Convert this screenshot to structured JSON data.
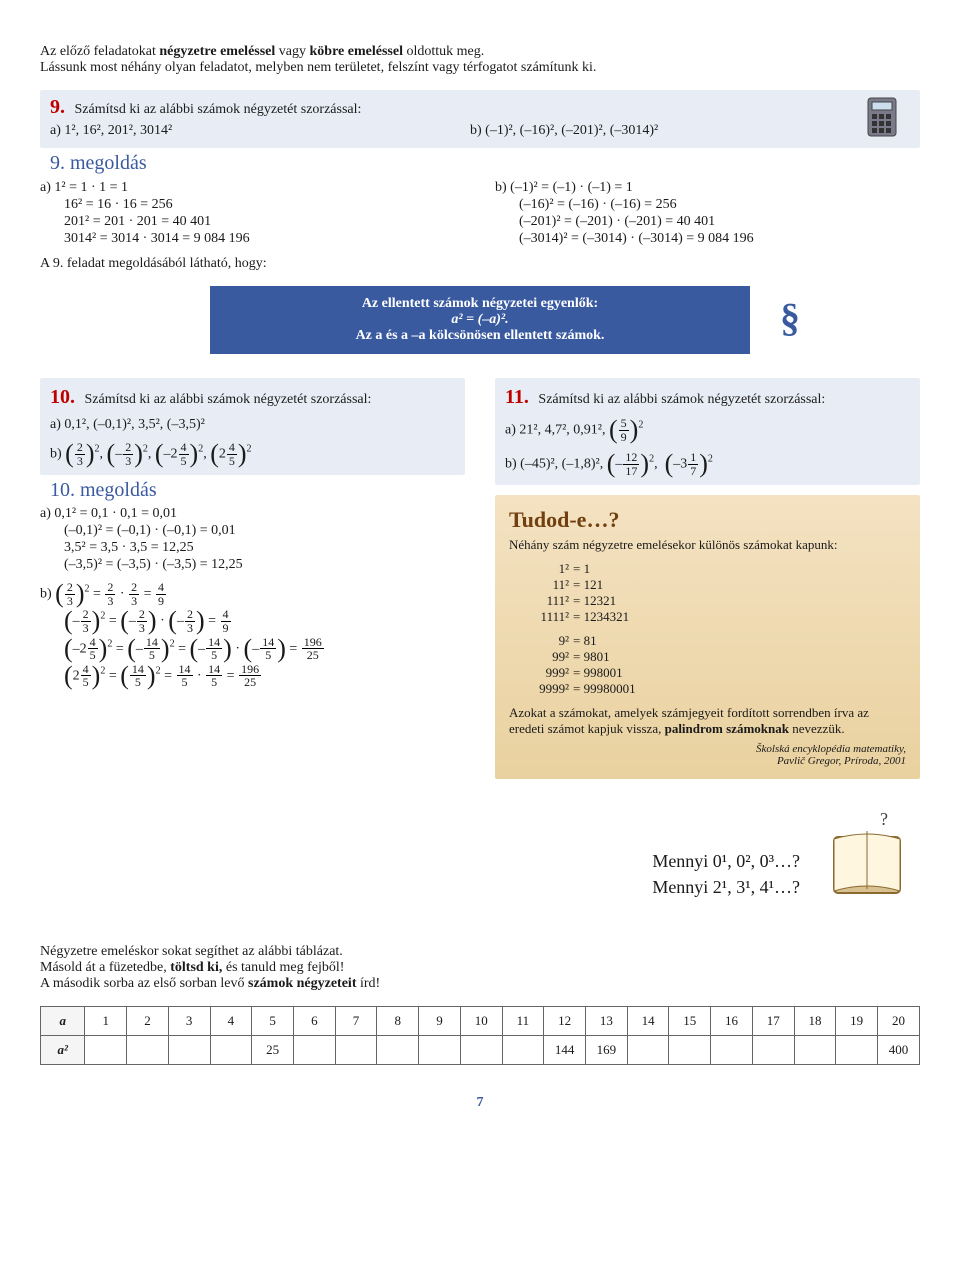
{
  "intro": {
    "line1_a": "Az előző feladatokat ",
    "line1_b": "négyzetre emeléssel",
    "line1_c": " vagy ",
    "line1_d": "köbre emeléssel",
    "line1_e": " oldottuk meg.",
    "line2": "Lássunk most néhány olyan feladatot, melyben nem területet, felszínt vagy térfogatot számítunk ki."
  },
  "ex9": {
    "num": "9.",
    "text": "Számítsd ki az alábbi számok négyzetét szorzással:",
    "a": "a) 1², 16², 201², 3014²",
    "b": "b) (–1)², (–16)², (–201)², (–3014)²"
  },
  "sol9": {
    "label": "9. megoldás",
    "a1": "a) 1² = 1 · 1 = 1",
    "a2": "16² = 16 · 16 = 256",
    "a3": "201² = 201 · 201 = 40 401",
    "a4": "3014² = 3014 · 3014 = 9 084 196",
    "b1": "b) (–1)² = (–1) · (–1) = 1",
    "b2": "(–16)² = (–16) · (–16) = 256",
    "b3": "(–201)² = (–201) · (–201) = 40 401",
    "b4": "(–3014)² = (–3014) · (–3014) = 9 084 196",
    "note": "A 9. feladat megoldásából látható, hogy:"
  },
  "rule": {
    "line1": "Az ellentett számok négyzetei egyenlők:",
    "line2": "a² = (–a)².",
    "line3": "Az a és a –a kölcsönösen ellentett számok."
  },
  "ex10": {
    "num": "10.",
    "text": "Számítsd ki az alábbi számok négyzetét szorzással:",
    "a": "a) 0,1², (–0,1)², 3,5², (–3,5)²",
    "b_pre": "b) "
  },
  "sol10": {
    "label": "10. megoldás",
    "a1": "a) 0,1² = 0,1 · 0,1 = 0,01",
    "a2": "(–0,1)² = (–0,1) · (–0,1) = 0,01",
    "a3": "3,5² = 3,5 · 3,5 = 12,25",
    "a4": "(–3,5)² = (–3,5) · (–3,5) = 12,25",
    "b_pre": "b) "
  },
  "ex11": {
    "num": "11.",
    "text": "Számítsd ki az alábbi számok négyzetét szorzással:",
    "a_pre": "a) 21², 4,7², 0,91², ",
    "b_pre": "b) (–45)², (–1,8)², "
  },
  "tudod": {
    "title": "Tudod-e…?",
    "intro": "Néhány szám négyzetre emelésekor különös számokat kapunk:",
    "rows1": [
      [
        "1²",
        "= 1"
      ],
      [
        "11²",
        "= 121"
      ],
      [
        "111²",
        "= 12321"
      ],
      [
        "1111²",
        "= 1234321"
      ]
    ],
    "rows2": [
      [
        "9²",
        "= 81"
      ],
      [
        "99²",
        "= 9801"
      ],
      [
        "999²",
        "= 998001"
      ],
      [
        "9999²",
        "= 99980001"
      ]
    ],
    "body": "Azokat a számokat, amelyek számjegyeit fordított sorrendben írva az eredeti számot kapjuk vissza, palindrom számoknak nevezzük.",
    "src1": "Školská encyklopédia matematiky,",
    "src2": "Pavlič Gregor, Príroda, 2001"
  },
  "cursive": {
    "l1": "Mennyi 0¹, 0², 0³…?",
    "l2": "Mennyi 2¹, 3¹, 4¹…?"
  },
  "tail": {
    "l1": "Négyzetre emeléskor sokat segíthet az alábbi táblázat.",
    "l2a": "Másold át a füzetedbe, ",
    "l2b": "töltsd ki,",
    "l2c": " és tanuld meg fejből!",
    "l3a": "A második sorba az első sorban levő ",
    "l3b": "számok négyzeteit",
    "l3c": " írd!"
  },
  "table": {
    "h1": "a",
    "h2": "a²",
    "cols": [
      "1",
      "2",
      "3",
      "4",
      "5",
      "6",
      "7",
      "8",
      "9",
      "10",
      "11",
      "12",
      "13",
      "14",
      "15",
      "16",
      "17",
      "18",
      "19",
      "20"
    ],
    "vals": [
      "",
      "",
      "",
      "",
      "25",
      "",
      "",
      "",
      "",
      "",
      "",
      "144",
      "169",
      "",
      "",
      "",
      "",
      "",
      "",
      "400"
    ]
  },
  "pagenum": "7"
}
